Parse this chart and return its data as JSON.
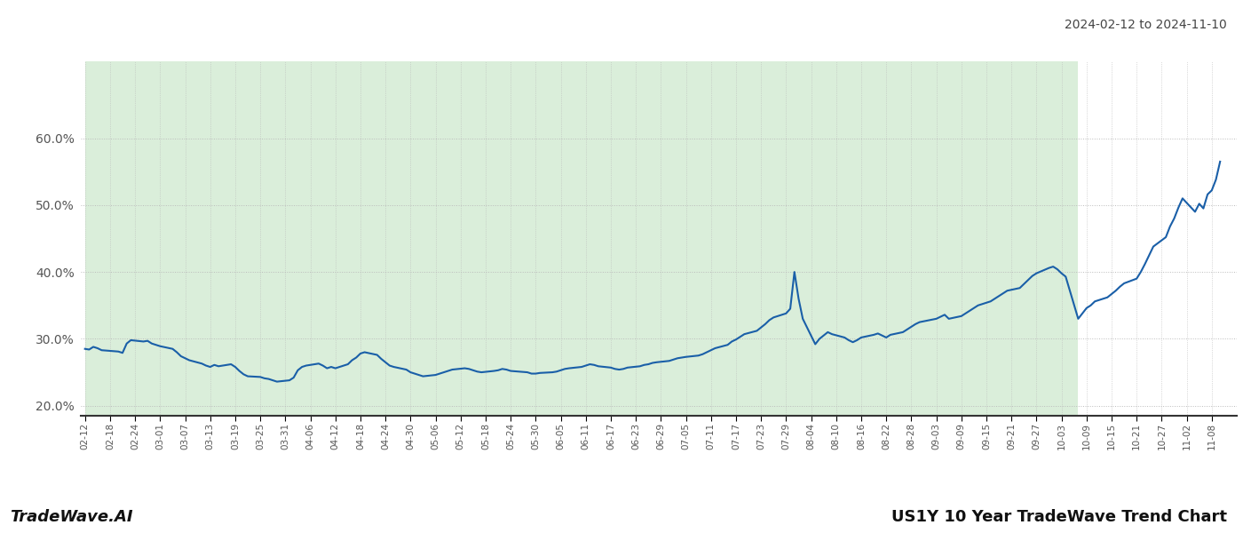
{
  "title_top_right": "2024-02-12 to 2024-11-10",
  "bottom_left": "TradeWave.AI",
  "bottom_right": "US1Y 10 Year TradeWave Trend Chart",
  "line_color": "#1a5fa8",
  "shaded_region_color": "#daeeda",
  "background_color": "#ffffff",
  "grid_color": "#bbbbbb",
  "ylim": [
    0.185,
    0.715
  ],
  "yticks": [
    0.2,
    0.3,
    0.4,
    0.5,
    0.6
  ],
  "ytick_labels": [
    "20.0%",
    "30.0%",
    "40.0%",
    "50.0%",
    "60.0%"
  ],
  "shaded_start": "2024-02-12",
  "shaded_end": "2024-10-07",
  "x_start": "2024-02-12",
  "x_end": "2024-11-10",
  "data_points": [
    [
      "2024-02-12",
      0.285
    ],
    [
      "2024-02-13",
      0.284
    ],
    [
      "2024-02-14",
      0.288
    ],
    [
      "2024-02-15",
      0.286
    ],
    [
      "2024-02-16",
      0.283
    ],
    [
      "2024-02-20",
      0.281
    ],
    [
      "2024-02-21",
      0.279
    ],
    [
      "2024-02-22",
      0.293
    ],
    [
      "2024-02-23",
      0.298
    ],
    [
      "2024-02-26",
      0.296
    ],
    [
      "2024-02-27",
      0.297
    ],
    [
      "2024-02-28",
      0.293
    ],
    [
      "2024-02-29",
      0.291
    ],
    [
      "2024-03-01",
      0.289
    ],
    [
      "2024-03-04",
      0.285
    ],
    [
      "2024-03-05",
      0.28
    ],
    [
      "2024-03-06",
      0.274
    ],
    [
      "2024-03-07",
      0.271
    ],
    [
      "2024-03-08",
      0.268
    ],
    [
      "2024-03-11",
      0.263
    ],
    [
      "2024-03-12",
      0.26
    ],
    [
      "2024-03-13",
      0.258
    ],
    [
      "2024-03-14",
      0.261
    ],
    [
      "2024-03-15",
      0.259
    ],
    [
      "2024-03-18",
      0.262
    ],
    [
      "2024-03-19",
      0.258
    ],
    [
      "2024-03-20",
      0.252
    ],
    [
      "2024-03-21",
      0.247
    ],
    [
      "2024-03-22",
      0.244
    ],
    [
      "2024-03-25",
      0.243
    ],
    [
      "2024-03-26",
      0.241
    ],
    [
      "2024-03-27",
      0.24
    ],
    [
      "2024-03-28",
      0.238
    ],
    [
      "2024-03-29",
      0.236
    ],
    [
      "2024-04-01",
      0.238
    ],
    [
      "2024-04-02",
      0.242
    ],
    [
      "2024-04-03",
      0.253
    ],
    [
      "2024-04-04",
      0.258
    ],
    [
      "2024-04-05",
      0.26
    ],
    [
      "2024-04-08",
      0.263
    ],
    [
      "2024-04-09",
      0.26
    ],
    [
      "2024-04-10",
      0.256
    ],
    [
      "2024-04-11",
      0.258
    ],
    [
      "2024-04-12",
      0.256
    ],
    [
      "2024-04-15",
      0.262
    ],
    [
      "2024-04-16",
      0.268
    ],
    [
      "2024-04-17",
      0.272
    ],
    [
      "2024-04-18",
      0.278
    ],
    [
      "2024-04-19",
      0.28
    ],
    [
      "2024-04-22",
      0.276
    ],
    [
      "2024-04-23",
      0.27
    ],
    [
      "2024-04-24",
      0.265
    ],
    [
      "2024-04-25",
      0.26
    ],
    [
      "2024-04-26",
      0.258
    ],
    [
      "2024-04-29",
      0.254
    ],
    [
      "2024-04-30",
      0.25
    ],
    [
      "2024-05-01",
      0.248
    ],
    [
      "2024-05-02",
      0.246
    ],
    [
      "2024-05-03",
      0.244
    ],
    [
      "2024-05-06",
      0.246
    ],
    [
      "2024-05-07",
      0.248
    ],
    [
      "2024-05-08",
      0.25
    ],
    [
      "2024-05-09",
      0.252
    ],
    [
      "2024-05-10",
      0.254
    ],
    [
      "2024-05-13",
      0.256
    ],
    [
      "2024-05-14",
      0.255
    ],
    [
      "2024-05-15",
      0.253
    ],
    [
      "2024-05-16",
      0.251
    ],
    [
      "2024-05-17",
      0.25
    ],
    [
      "2024-05-20",
      0.252
    ],
    [
      "2024-05-21",
      0.253
    ],
    [
      "2024-05-22",
      0.255
    ],
    [
      "2024-05-23",
      0.254
    ],
    [
      "2024-05-24",
      0.252
    ],
    [
      "2024-05-28",
      0.25
    ],
    [
      "2024-05-29",
      0.248
    ],
    [
      "2024-05-30",
      0.248
    ],
    [
      "2024-05-31",
      0.249
    ],
    [
      "2024-06-03",
      0.25
    ],
    [
      "2024-06-04",
      0.251
    ],
    [
      "2024-06-05",
      0.253
    ],
    [
      "2024-06-06",
      0.255
    ],
    [
      "2024-06-07",
      0.256
    ],
    [
      "2024-06-10",
      0.258
    ],
    [
      "2024-06-11",
      0.26
    ],
    [
      "2024-06-12",
      0.262
    ],
    [
      "2024-06-13",
      0.261
    ],
    [
      "2024-06-14",
      0.259
    ],
    [
      "2024-06-17",
      0.257
    ],
    [
      "2024-06-18",
      0.255
    ],
    [
      "2024-06-19",
      0.254
    ],
    [
      "2024-06-20",
      0.255
    ],
    [
      "2024-06-21",
      0.257
    ],
    [
      "2024-06-24",
      0.259
    ],
    [
      "2024-06-25",
      0.261
    ],
    [
      "2024-06-26",
      0.262
    ],
    [
      "2024-06-27",
      0.264
    ],
    [
      "2024-06-28",
      0.265
    ],
    [
      "2024-07-01",
      0.267
    ],
    [
      "2024-07-02",
      0.269
    ],
    [
      "2024-07-03",
      0.271
    ],
    [
      "2024-07-05",
      0.273
    ],
    [
      "2024-07-08",
      0.275
    ],
    [
      "2024-07-09",
      0.277
    ],
    [
      "2024-07-10",
      0.28
    ],
    [
      "2024-07-11",
      0.283
    ],
    [
      "2024-07-12",
      0.286
    ],
    [
      "2024-07-15",
      0.291
    ],
    [
      "2024-07-16",
      0.296
    ],
    [
      "2024-07-17",
      0.299
    ],
    [
      "2024-07-18",
      0.303
    ],
    [
      "2024-07-19",
      0.307
    ],
    [
      "2024-07-22",
      0.312
    ],
    [
      "2024-07-23",
      0.317
    ],
    [
      "2024-07-24",
      0.322
    ],
    [
      "2024-07-25",
      0.328
    ],
    [
      "2024-07-26",
      0.332
    ],
    [
      "2024-07-29",
      0.338
    ],
    [
      "2024-07-30",
      0.345
    ],
    [
      "2024-07-31",
      0.4
    ],
    [
      "2024-08-01",
      0.36
    ],
    [
      "2024-08-02",
      0.33
    ],
    [
      "2024-08-05",
      0.292
    ],
    [
      "2024-08-06",
      0.3
    ],
    [
      "2024-08-07",
      0.305
    ],
    [
      "2024-08-08",
      0.31
    ],
    [
      "2024-08-09",
      0.307
    ],
    [
      "2024-08-12",
      0.302
    ],
    [
      "2024-08-13",
      0.298
    ],
    [
      "2024-08-14",
      0.295
    ],
    [
      "2024-08-15",
      0.298
    ],
    [
      "2024-08-16",
      0.302
    ],
    [
      "2024-08-19",
      0.306
    ],
    [
      "2024-08-20",
      0.308
    ],
    [
      "2024-08-21",
      0.305
    ],
    [
      "2024-08-22",
      0.302
    ],
    [
      "2024-08-23",
      0.306
    ],
    [
      "2024-08-26",
      0.31
    ],
    [
      "2024-08-27",
      0.314
    ],
    [
      "2024-08-28",
      0.318
    ],
    [
      "2024-08-29",
      0.322
    ],
    [
      "2024-08-30",
      0.325
    ],
    [
      "2024-09-03",
      0.33
    ],
    [
      "2024-09-04",
      0.333
    ],
    [
      "2024-09-05",
      0.336
    ],
    [
      "2024-09-06",
      0.33
    ],
    [
      "2024-09-09",
      0.334
    ],
    [
      "2024-09-10",
      0.338
    ],
    [
      "2024-09-11",
      0.342
    ],
    [
      "2024-09-12",
      0.346
    ],
    [
      "2024-09-13",
      0.35
    ],
    [
      "2024-09-16",
      0.356
    ],
    [
      "2024-09-17",
      0.36
    ],
    [
      "2024-09-18",
      0.364
    ],
    [
      "2024-09-19",
      0.368
    ],
    [
      "2024-09-20",
      0.372
    ],
    [
      "2024-09-23",
      0.376
    ],
    [
      "2024-09-24",
      0.382
    ],
    [
      "2024-09-25",
      0.388
    ],
    [
      "2024-09-26",
      0.394
    ],
    [
      "2024-09-27",
      0.398
    ],
    [
      "2024-09-30",
      0.406
    ],
    [
      "2024-10-01",
      0.408
    ],
    [
      "2024-10-02",
      0.404
    ],
    [
      "2024-10-03",
      0.398
    ],
    [
      "2024-10-04",
      0.393
    ],
    [
      "2024-10-07",
      0.33
    ],
    [
      "2024-10-08",
      0.338
    ],
    [
      "2024-10-09",
      0.346
    ],
    [
      "2024-10-10",
      0.35
    ],
    [
      "2024-10-11",
      0.356
    ],
    [
      "2024-10-14",
      0.362
    ],
    [
      "2024-10-15",
      0.367
    ],
    [
      "2024-10-16",
      0.372
    ],
    [
      "2024-10-17",
      0.378
    ],
    [
      "2024-10-18",
      0.383
    ],
    [
      "2024-10-21",
      0.39
    ],
    [
      "2024-10-22",
      0.4
    ],
    [
      "2024-10-23",
      0.412
    ],
    [
      "2024-10-24",
      0.425
    ],
    [
      "2024-10-25",
      0.438
    ],
    [
      "2024-10-28",
      0.452
    ],
    [
      "2024-10-29",
      0.468
    ],
    [
      "2024-10-30",
      0.48
    ],
    [
      "2024-10-31",
      0.496
    ],
    [
      "2024-11-01",
      0.51
    ],
    [
      "2024-11-04",
      0.49
    ],
    [
      "2024-11-05",
      0.502
    ],
    [
      "2024-11-06",
      0.495
    ],
    [
      "2024-11-07",
      0.516
    ],
    [
      "2024-11-08",
      0.522
    ],
    [
      "2024-11-09",
      0.538
    ],
    [
      "2024-11-10",
      0.565
    ]
  ]
}
